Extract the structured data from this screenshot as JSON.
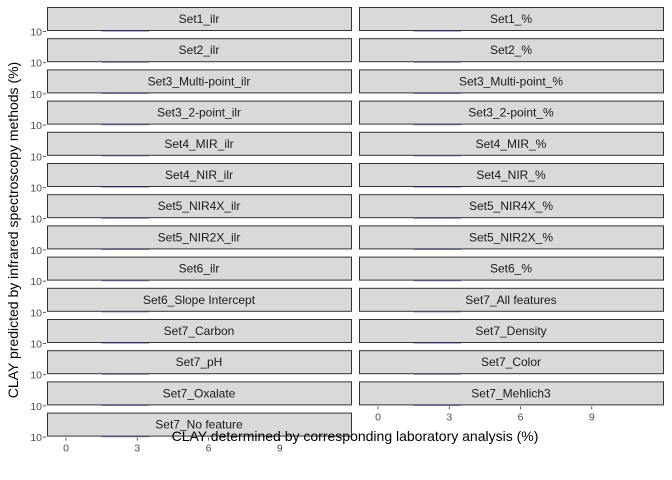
{
  "chart_data": {
    "type": "scatter",
    "xlabel": "CLAY determined by corresponding laboratory analysis (%)",
    "ylabel": "CLAY predicted by infrared spectroscopy methods (%)",
    "xlim": [
      -0.8,
      12
    ],
    "x_ticks": [
      "0",
      "3",
      "6",
      "9"
    ],
    "y_tick_label": "10",
    "ncol": 2,
    "panels": [
      {
        "title": "Set1_ilr"
      },
      {
        "title": "Set1_%"
      },
      {
        "title": "Set2_ilr"
      },
      {
        "title": "Set2_%"
      },
      {
        "title": "Set3_Multi-point_ilr"
      },
      {
        "title": "Set3_Multi-point_%"
      },
      {
        "title": "Set3_2-point_ilr"
      },
      {
        "title": "Set3_2-point_%"
      },
      {
        "title": "Set4_MIR_ilr"
      },
      {
        "title": "Set4_MIR_%"
      },
      {
        "title": "Set4_NIR_ilr"
      },
      {
        "title": "Set4_NIR_%"
      },
      {
        "title": "Set5_NIR4X_ilr"
      },
      {
        "title": "Set5_NIR4X_%"
      },
      {
        "title": "Set5_NIR2X_ilr"
      },
      {
        "title": "Set5_NIR2X_%"
      },
      {
        "title": "Set6_ilr"
      },
      {
        "title": "Set6_%"
      },
      {
        "title": "Set6_Slope Intercept"
      },
      {
        "title": "Set7_All features"
      },
      {
        "title": "Set7_Carbon"
      },
      {
        "title": "Set7_Density"
      },
      {
        "title": "Set7_pH"
      },
      {
        "title": "Set7_Color"
      },
      {
        "title": "Set7_Oxalate"
      },
      {
        "title": "Set7_Mehlich3"
      },
      {
        "title": "Set7_No feature"
      }
    ],
    "colors": {
      "strip_fill": "#d9d9d9",
      "strip_border": "#333333",
      "trace_line": "#1f3a93"
    }
  }
}
